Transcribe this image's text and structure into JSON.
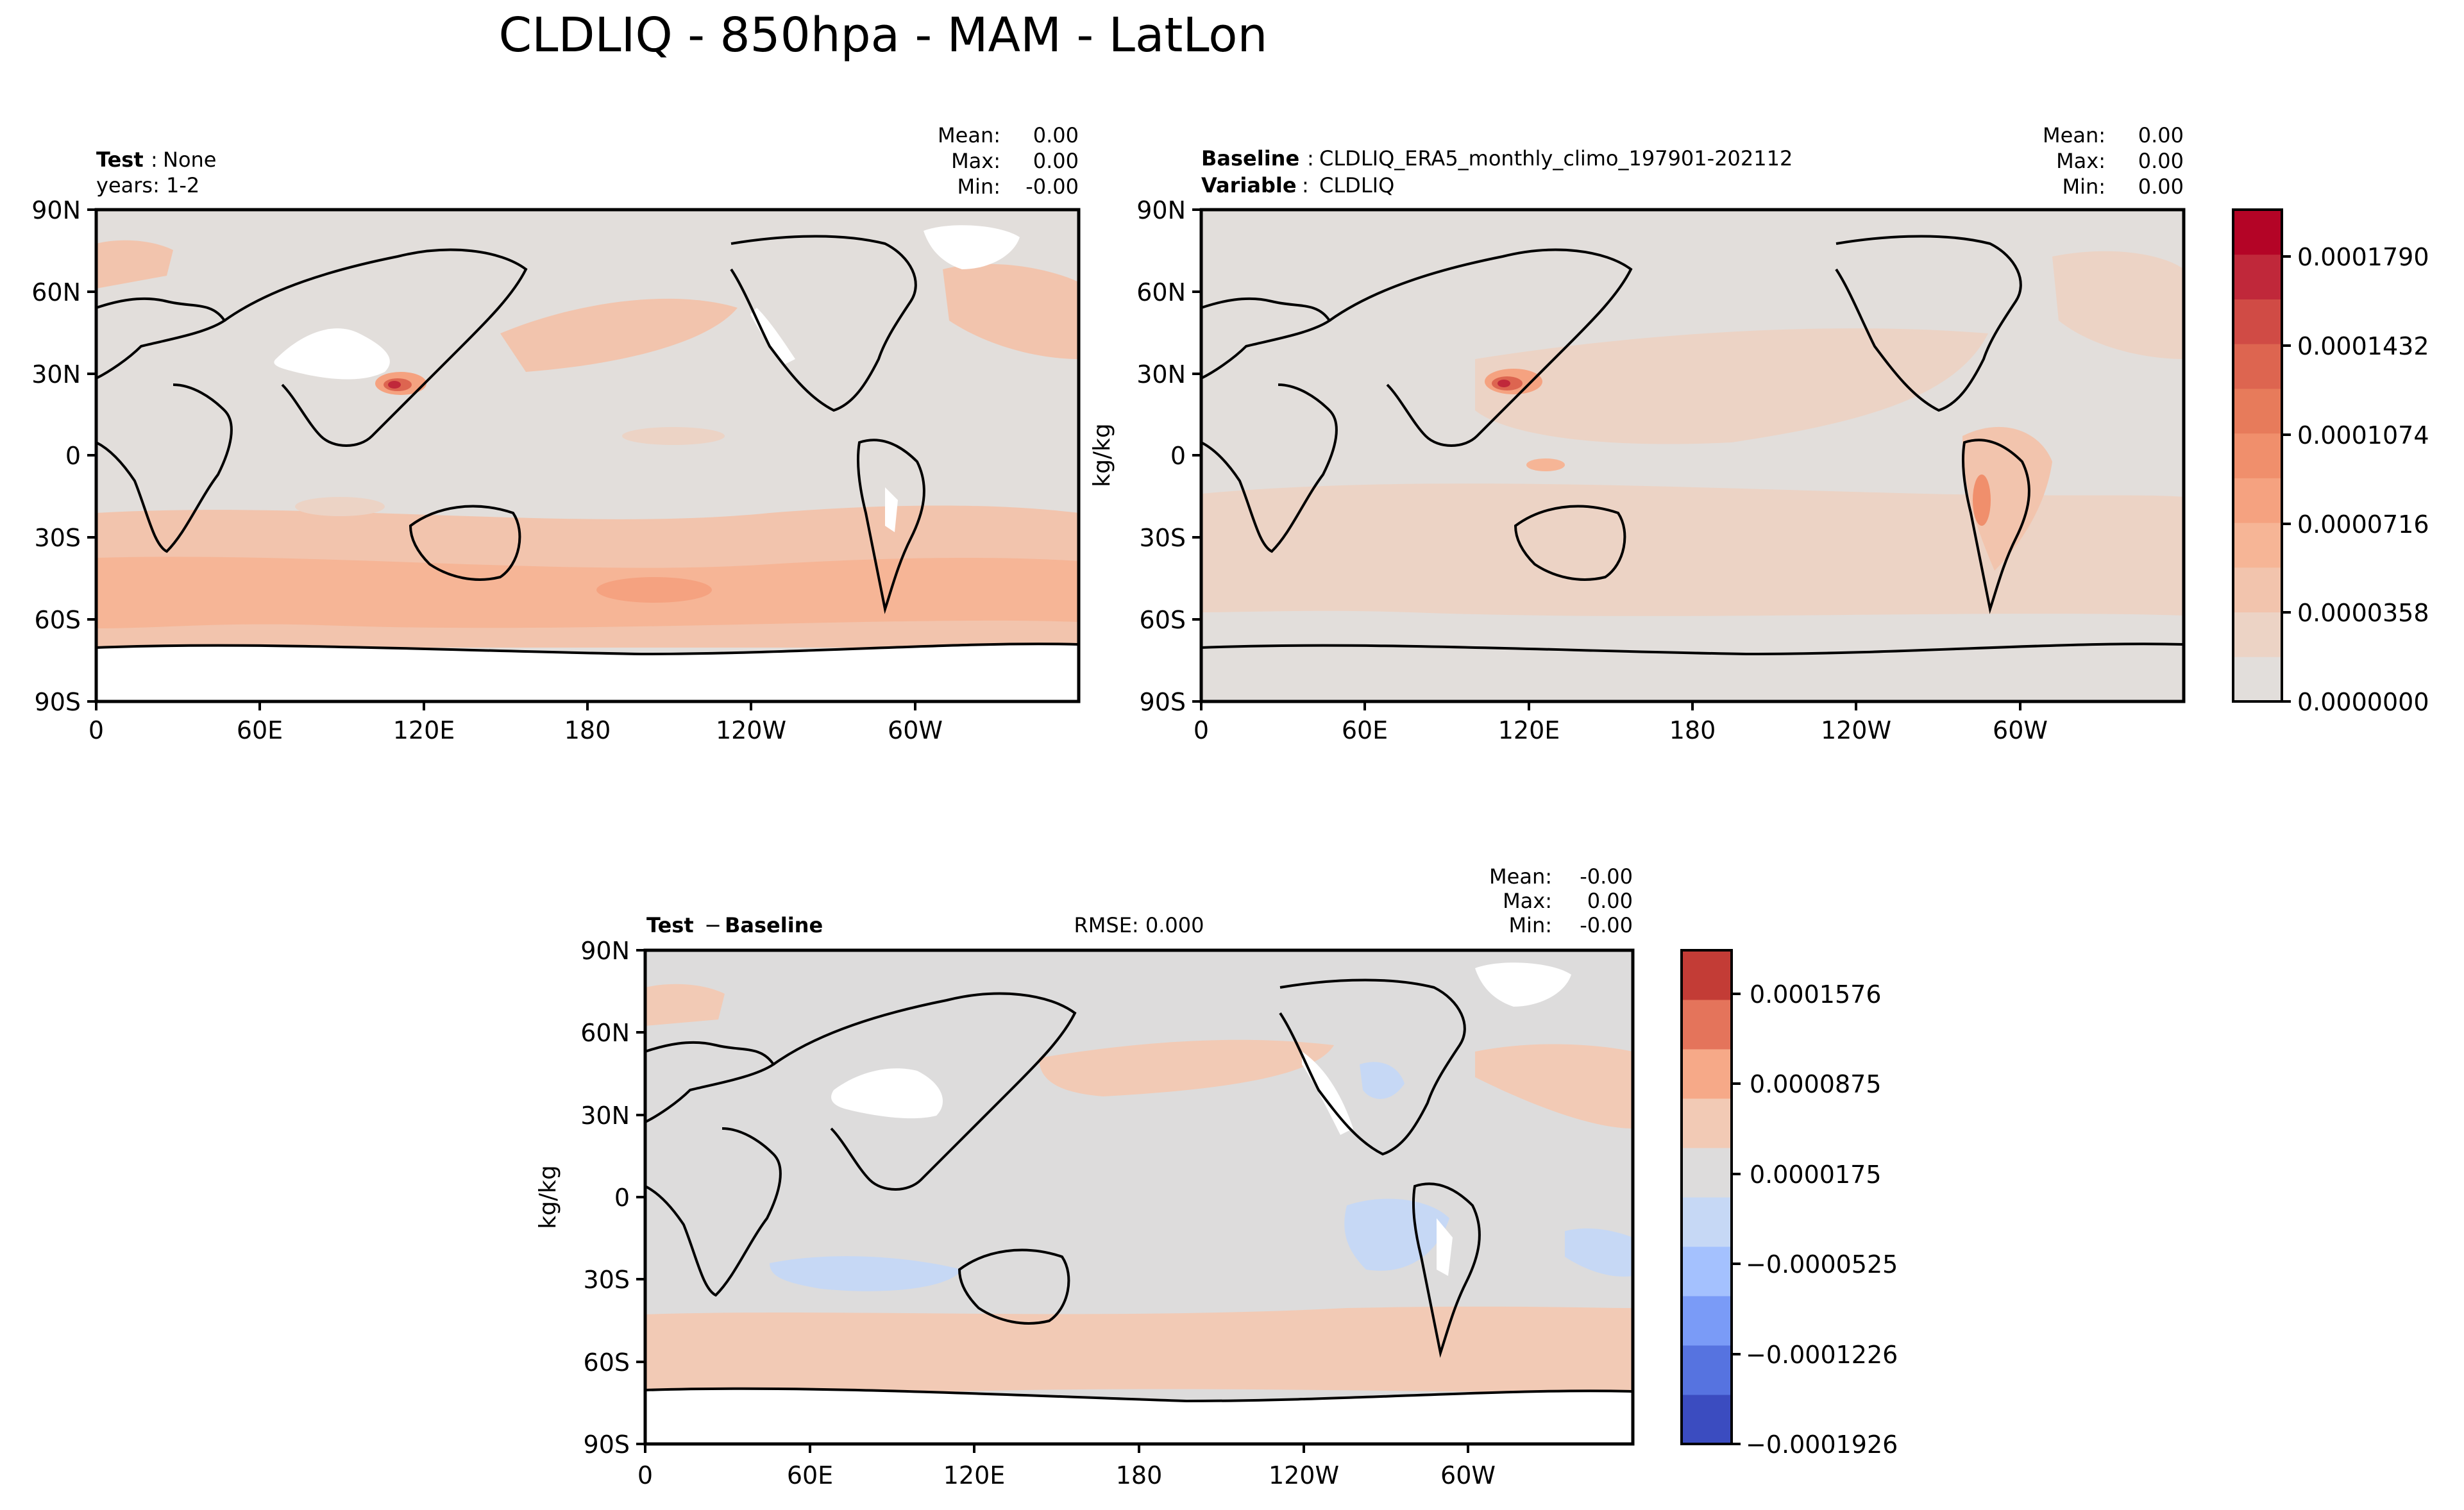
{
  "figure": {
    "title": "CLDLIQ - 850hpa - MAM - LatLon",
    "x_ticks": [
      "0",
      "60E",
      "120E",
      "180",
      "120W",
      "60W"
    ],
    "y_ticks": [
      "90N",
      "60N",
      "30N",
      "0",
      "30S",
      "60S",
      "90S"
    ]
  },
  "colors": {
    "land_outline": "#000000",
    "background_fill": "#dcd8d5",
    "missing": "#ffffff",
    "seq_scale": [
      "#e2dedb",
      "#ecd3c5",
      "#f2c4ad",
      "#f6b596",
      "#f5a280",
      "#f08f6c",
      "#e77b5b",
      "#dd6550",
      "#d04b45",
      "#c0283a",
      "#b40426"
    ],
    "div_scale": [
      "#3b4cc0",
      "#5673e0",
      "#7a9bf7",
      "#a4c1fe",
      "#c6d8f5",
      "#dddcdc",
      "#f2cab5",
      "#f6a988",
      "#e4745b",
      "#c33c36"
    ]
  },
  "chart_data": [
    {
      "type": "heatmap",
      "panel": "test",
      "stats": {
        "mean_label": "Mean:",
        "mean": "0.00",
        "max_label": "Max:",
        "max": "0.00",
        "min_label": "Min:",
        "min": "-0.00"
      },
      "left_label_bold": "Test",
      "left_label_sep": ":",
      "left_label_value": "None",
      "left_label_line2": "years: 1-2",
      "x_range": [
        0,
        360
      ],
      "y_range": [
        -90,
        90
      ]
    },
    {
      "type": "heatmap",
      "panel": "baseline",
      "stats": {
        "mean_label": "Mean:",
        "mean": "0.00",
        "max_label": "Max:",
        "max": "0.00",
        "min_label": "Min:",
        "min": "0.00"
      },
      "left_label_bold": "Baseline",
      "left_label_sep": ":",
      "left_label_value": "CLDLIQ_ERA5_monthly_climo_197901-202112",
      "left_label2_bold": "Variable",
      "left_label2_value": "CLDLIQ",
      "ylabel": "kg/kg",
      "colorbar_ticks": [
        "0.0001790",
        "0.0001432",
        "0.0001074",
        "0.0000716",
        "0.0000358",
        "0.0000000"
      ],
      "colorbar_range": [
        0,
        0.000197
      ]
    },
    {
      "type": "heatmap",
      "panel": "difference",
      "stats": {
        "mean_label": "Mean:",
        "mean": "-0.00",
        "max_label": "Max:",
        "max": "0.00",
        "min_label": "Min:",
        "min": "-0.00"
      },
      "left_label_bold": "Test",
      "left_label_sep": " − ",
      "left_label_bold2": "Baseline",
      "rmse": "RMSE: 0.000",
      "ylabel": "kg/kg",
      "colorbar_ticks": [
        "0.0001576",
        "0.0000875",
        "0.0000175",
        "−0.0000525",
        "−0.0001226",
        "−0.0001926"
      ],
      "colorbar_range": [
        -0.0001926,
        0.0002
      ]
    }
  ]
}
